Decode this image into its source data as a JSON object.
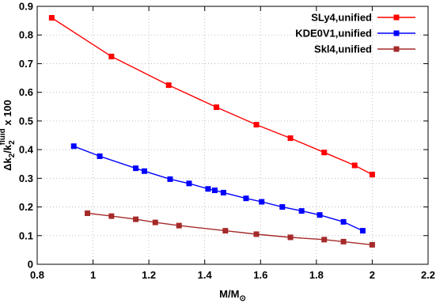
{
  "chart_data": {
    "type": "line",
    "xlabel": "M/M",
    "xlabel_sub": "⊙",
    "ylabel": "Δk",
    "ylabel_sub1": "2",
    "ylabel_mid": "/k",
    "ylabel_sub2": "2",
    "ylabel_sup": "fluid",
    "ylabel_tail": " x 100",
    "xlim": [
      0.8,
      2.2
    ],
    "ylim": [
      0,
      0.9
    ],
    "x_ticks": [
      "0.8",
      "1",
      "1.2",
      "1.4",
      "1.6",
      "1.8",
      "2",
      "2.2"
    ],
    "y_ticks": [
      "0",
      "0.1",
      "0.2",
      "0.3",
      "0.4",
      "0.5",
      "0.6",
      "0.7",
      "0.8",
      "0.9"
    ],
    "grid": true,
    "legend_position": "top-right",
    "series": [
      {
        "name": "SLy4,unified",
        "color": "#ff0000",
        "x": [
          0.852,
          1.066,
          1.271,
          1.442,
          1.585,
          1.707,
          1.828,
          1.937,
          2.0
        ],
        "y": [
          0.86,
          0.725,
          0.625,
          0.548,
          0.487,
          0.44,
          0.39,
          0.345,
          0.313
        ]
      },
      {
        "name": "KDE0V1,unified",
        "color": "#0000ff",
        "x": [
          0.931,
          1.024,
          1.153,
          1.184,
          1.276,
          1.344,
          1.412,
          1.436,
          1.467,
          1.548,
          1.604,
          1.678,
          1.747,
          1.812,
          1.897,
          1.966
        ],
        "y": [
          0.412,
          0.377,
          0.335,
          0.325,
          0.297,
          0.282,
          0.263,
          0.258,
          0.25,
          0.23,
          0.218,
          0.2,
          0.186,
          0.172,
          0.148,
          0.117
        ]
      },
      {
        "name": "Skl4,unified",
        "color": "#a52a2a",
        "x": [
          0.98,
          1.066,
          1.153,
          1.223,
          1.308,
          1.474,
          1.585,
          1.707,
          1.828,
          1.897,
          2.0
        ],
        "y": [
          0.178,
          0.168,
          0.157,
          0.146,
          0.135,
          0.117,
          0.105,
          0.094,
          0.086,
          0.079,
          0.068
        ]
      }
    ]
  }
}
